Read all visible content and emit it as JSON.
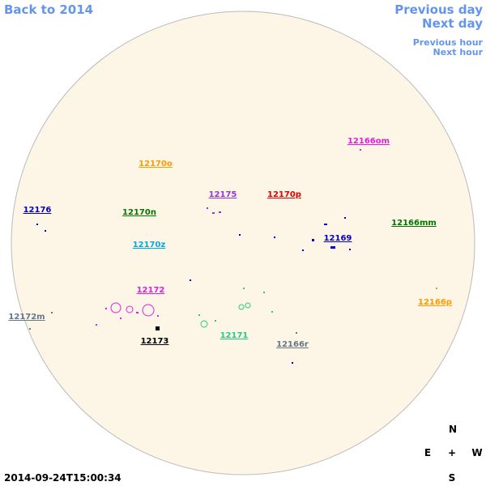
{
  "nav": {
    "back": "Back to 2014",
    "previous_day": "Previous day",
    "next_day": "Next day",
    "previous_hour": "Previous hour",
    "next_hour": "Next hour"
  },
  "timestamp": "2014-09-24T15:00:34",
  "compass": {
    "north": "N",
    "east": "E",
    "center": "+",
    "west": "W",
    "south": "S"
  },
  "regions": [
    {
      "label": "12166om"
    },
    {
      "label": "12170o"
    },
    {
      "label": "12175"
    },
    {
      "label": "12170p"
    },
    {
      "label": "12176"
    },
    {
      "label": "12170n"
    },
    {
      "label": "12166mm"
    },
    {
      "label": "12169"
    },
    {
      "label": "12170z"
    },
    {
      "label": "12172"
    },
    {
      "label": "12166p"
    },
    {
      "label": "12172m"
    },
    {
      "label": "12173"
    },
    {
      "label": "12171"
    },
    {
      "label": "12166r"
    }
  ]
}
